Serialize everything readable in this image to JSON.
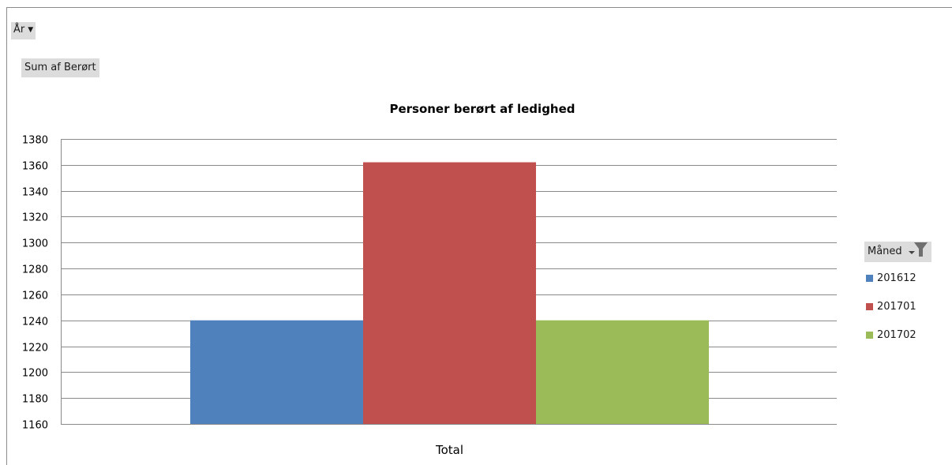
{
  "controls": {
    "year_label": "År",
    "values_label": "Sum af Berørt",
    "legend_label": "Måned"
  },
  "chart_data": {
    "type": "bar",
    "title": "Personer berørt af ledighed",
    "categories": [
      "Total"
    ],
    "series": [
      {
        "name": "201612",
        "values": [
          1240
        ],
        "color": "#4f81bd"
      },
      {
        "name": "201701",
        "values": [
          1362
        ],
        "color": "#c0504d"
      },
      {
        "name": "201702",
        "values": [
          1240
        ],
        "color": "#9bbb59"
      }
    ],
    "xlabel": "",
    "ylabel": "",
    "ylim": [
      1160,
      1380
    ],
    "yticks": [
      1160,
      1180,
      1200,
      1220,
      1240,
      1260,
      1280,
      1300,
      1320,
      1340,
      1360,
      1380
    ],
    "grid": true,
    "legend_position": "right"
  }
}
